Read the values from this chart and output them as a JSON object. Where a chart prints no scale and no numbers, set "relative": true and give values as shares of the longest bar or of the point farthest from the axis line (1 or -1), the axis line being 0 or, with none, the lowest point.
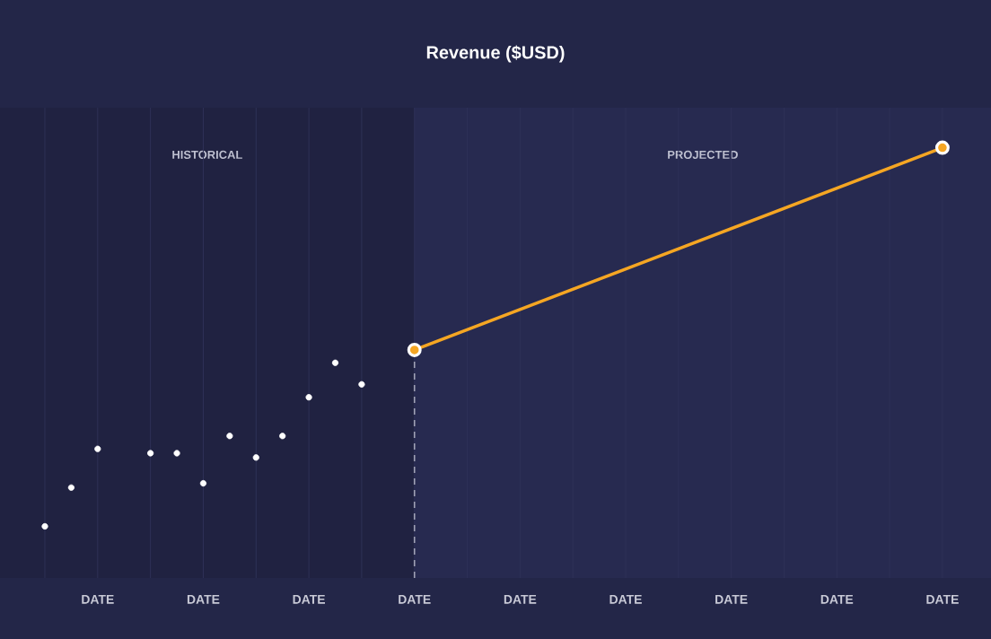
{
  "chart_data": {
    "type": "line",
    "title": "Revenue ($USD)",
    "relative": true,
    "categories": [
      null,
      null,
      "DATE",
      null,
      null,
      null,
      "DATE",
      null,
      null,
      null,
      "DATE",
      null,
      null,
      null,
      "DATE",
      null,
      null,
      null,
      "DATE",
      null,
      null,
      null,
      "DATE",
      null,
      null,
      null,
      "DATE",
      null,
      null,
      null,
      "DATE",
      null,
      null,
      null,
      "DATE"
    ],
    "grid": "x",
    "marker": "circle",
    "annotations": [
      "HISTORICAL",
      "PROJECTED"
    ],
    "series": [
      {
        "type": "scatter",
        "color": "#ffffff",
        "values": [
          0.12,
          0.21,
          0.3,
          null,
          0.29,
          0.29,
          0.22,
          0.33,
          0.28,
          0.33,
          0.42,
          0.5,
          0.45,
          null,
          null,
          null,
          null,
          null,
          null,
          null,
          null,
          null,
          null,
          null,
          null,
          null,
          null,
          null,
          null,
          null,
          null,
          null,
          null,
          null,
          null
        ]
      },
      {
        "color": "#f5a623",
        "values": [
          null,
          null,
          null,
          null,
          null,
          null,
          null,
          null,
          null,
          null,
          null,
          null,
          null,
          null,
          0.53,
          null,
          null,
          null,
          null,
          null,
          null,
          null,
          null,
          null,
          null,
          null,
          null,
          null,
          null,
          null,
          null,
          null,
          null,
          null,
          1
        ]
      }
    ]
  }
}
